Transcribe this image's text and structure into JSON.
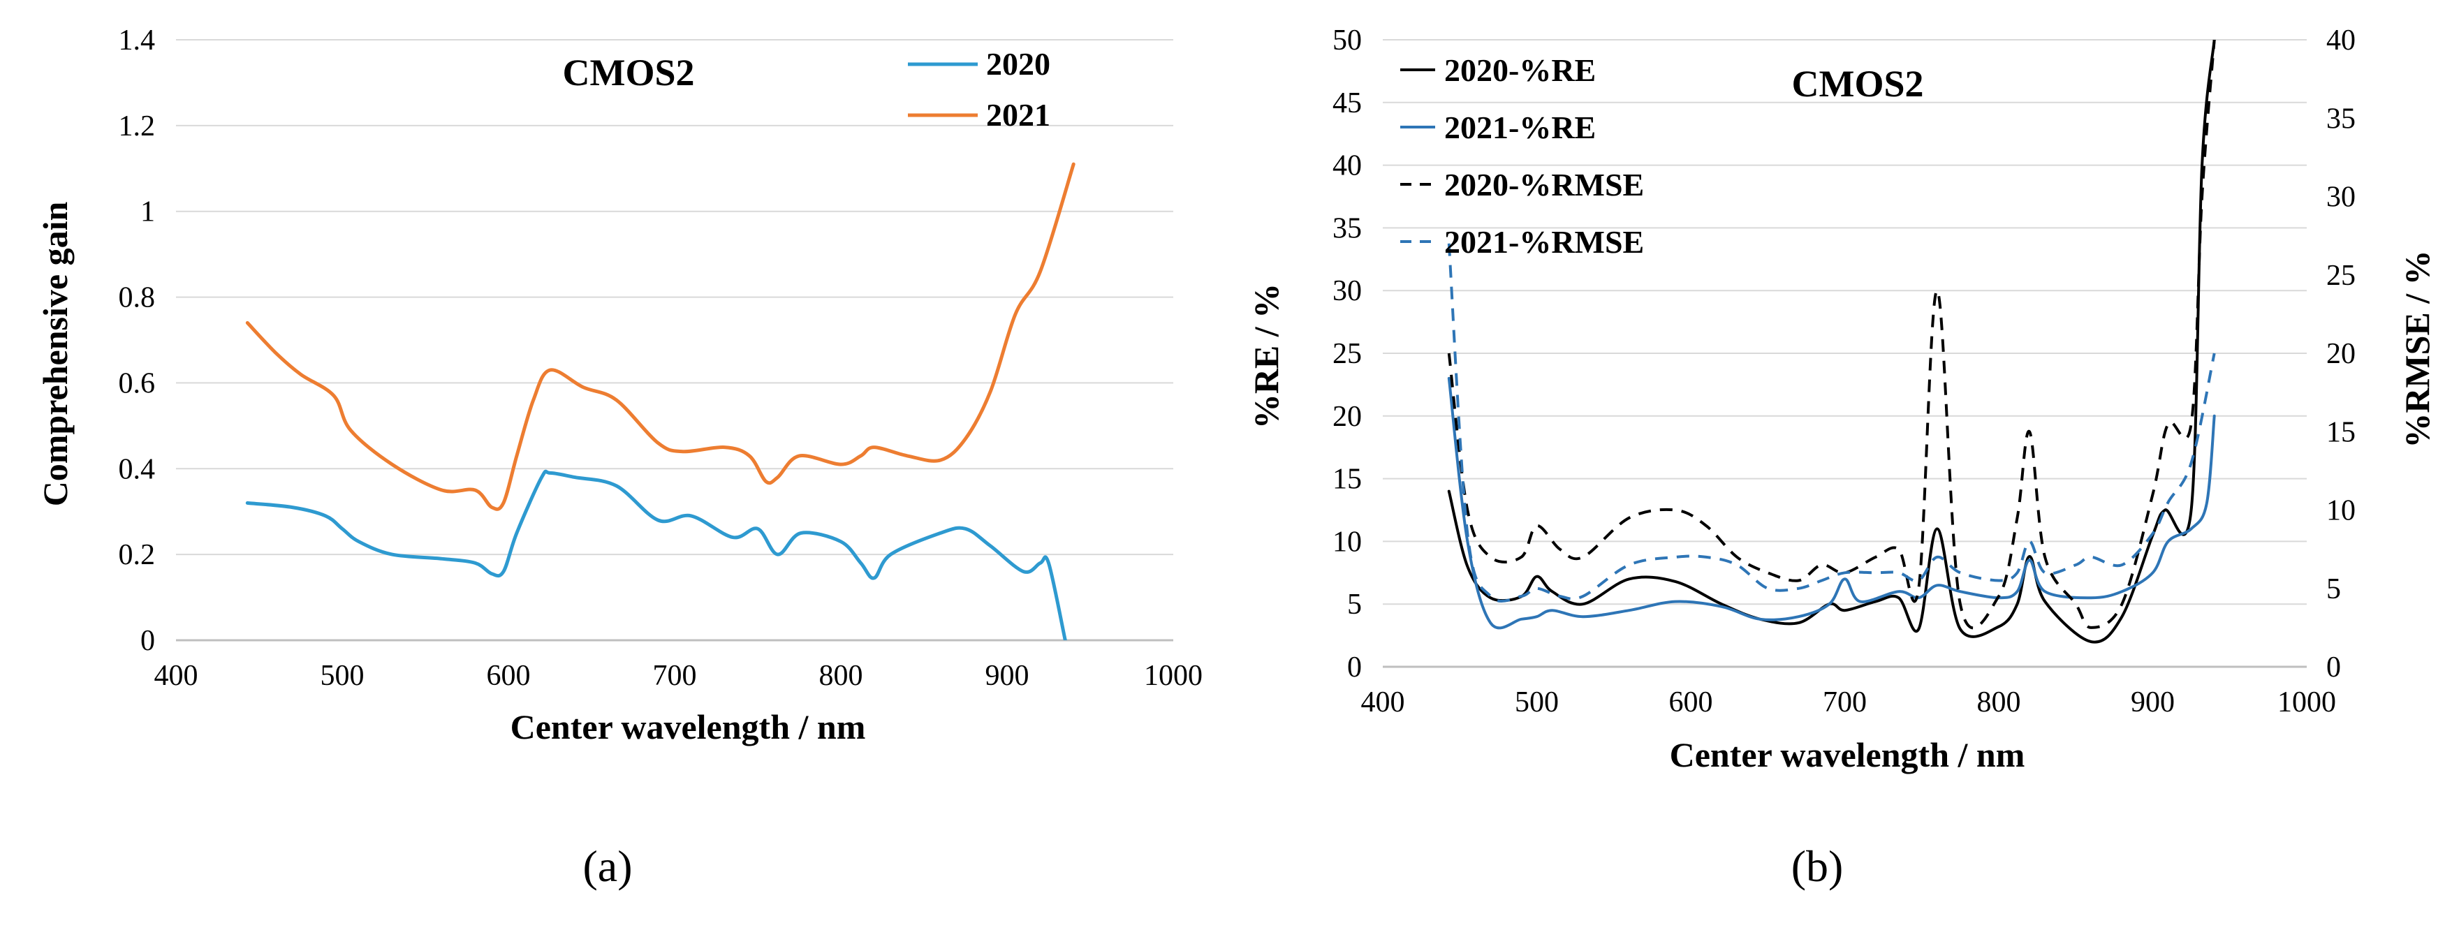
{
  "chart_data": [
    {
      "id": "a",
      "type": "line",
      "panel_label": "(a)",
      "title": "CMOS2",
      "xlabel": "Center wavelength / nm",
      "ylabel": "Comprehensive gain",
      "xlim": [
        400,
        1000
      ],
      "ylim": [
        0,
        1.4
      ],
      "xticks": [
        400,
        500,
        600,
        700,
        800,
        900,
        1000
      ],
      "yticks": [
        0,
        0.2,
        0.4,
        0.6,
        0.8,
        1,
        1.2,
        1.4
      ],
      "xtick_labels": [
        "400",
        "500",
        "600",
        "700",
        "800",
        "900",
        "1000"
      ],
      "ytick_labels": [
        "0",
        "0.2",
        "0.4",
        "0.6",
        "0.8",
        "1",
        "1.2",
        "1.4"
      ],
      "legend_position": "top-right",
      "series": [
        {
          "name": "2020",
          "color": "#2E9AD0",
          "dash": "solid",
          "x": [
            443,
            470,
            490,
            500,
            510,
            530,
            560,
            580,
            590,
            597,
            605,
            620,
            625,
            640,
            665,
            690,
            710,
            735,
            750,
            762,
            776,
            800,
            812,
            820,
            830,
            860,
            875,
            890,
            910,
            920,
            925,
            935
          ],
          "y": [
            0.32,
            0.31,
            0.29,
            0.26,
            0.23,
            0.2,
            0.19,
            0.18,
            0.155,
            0.16,
            0.25,
            0.38,
            0.39,
            0.38,
            0.36,
            0.28,
            0.29,
            0.24,
            0.26,
            0.2,
            0.25,
            0.23,
            0.18,
            0.145,
            0.2,
            0.25,
            0.26,
            0.22,
            0.16,
            0.18,
            0.18,
            0.0
          ]
        },
        {
          "name": "2021",
          "color": "#ED7D31",
          "dash": "solid",
          "x": [
            443,
            460,
            475,
            495,
            505,
            530,
            560,
            580,
            590,
            597,
            605,
            615,
            625,
            645,
            665,
            690,
            705,
            730,
            745,
            755,
            762,
            775,
            800,
            812,
            820,
            840,
            860,
            875,
            890,
            905,
            920,
            940
          ],
          "y": [
            0.74,
            0.67,
            0.62,
            0.57,
            0.49,
            0.41,
            0.35,
            0.35,
            0.31,
            0.32,
            0.43,
            0.56,
            0.63,
            0.59,
            0.56,
            0.46,
            0.44,
            0.45,
            0.43,
            0.37,
            0.38,
            0.43,
            0.41,
            0.43,
            0.45,
            0.43,
            0.42,
            0.47,
            0.58,
            0.76,
            0.86,
            1.11
          ]
        }
      ]
    },
    {
      "id": "b",
      "type": "line",
      "panel_label": "(b)",
      "title": "CMOS2",
      "xlabel": "Center wavelength / nm",
      "ylabel": "%RE / %",
      "y2label": "%RMSE / %",
      "xlim": [
        400,
        1000
      ],
      "ylim": [
        0,
        50
      ],
      "y2lim": [
        0,
        40
      ],
      "xticks": [
        400,
        500,
        600,
        700,
        800,
        900,
        1000
      ],
      "yticks": [
        0,
        5,
        10,
        15,
        20,
        25,
        30,
        35,
        40,
        45,
        50
      ],
      "y2ticks": [
        0,
        5,
        10,
        15,
        20,
        25,
        30,
        35,
        40
      ],
      "xtick_labels": [
        "400",
        "500",
        "600",
        "700",
        "800",
        "900",
        "1000"
      ],
      "ytick_labels": [
        "0",
        "5",
        "10",
        "15",
        "20",
        "25",
        "30",
        "35",
        "40",
        "45",
        "50"
      ],
      "y2tick_labels": [
        "0",
        "5",
        "10",
        "15",
        "20",
        "25",
        "30",
        "35",
        "40"
      ],
      "legend_position": "top-left",
      "series": [
        {
          "name": "2020-%RE",
          "color": "#000000",
          "dash": "solid",
          "axis": "left",
          "x": [
            443,
            455,
            470,
            490,
            500,
            510,
            530,
            560,
            590,
            620,
            645,
            670,
            690,
            700,
            720,
            735,
            748,
            760,
            775,
            800,
            812,
            820,
            830,
            860,
            880,
            900,
            908,
            925,
            932,
            940
          ],
          "y": [
            14,
            8,
            5.5,
            5.6,
            7.2,
            6,
            5,
            7,
            6.8,
            5,
            3.8,
            3.5,
            5,
            4.5,
            5.2,
            5.5,
            3,
            11,
            3,
            3.2,
            5,
            8.8,
            5.2,
            2,
            4,
            10.5,
            12.5,
            12.5,
            40,
            50
          ]
        },
        {
          "name": "2021-%RE",
          "color": "#2E75B6",
          "dash": "solid",
          "axis": "left",
          "x": [
            443,
            455,
            470,
            490,
            500,
            510,
            530,
            560,
            590,
            620,
            645,
            670,
            690,
            700,
            710,
            735,
            748,
            760,
            775,
            800,
            812,
            820,
            830,
            860,
            880,
            900,
            910,
            925,
            935,
            940
          ],
          "y": [
            23,
            10,
            3.5,
            3.8,
            4,
            4.5,
            4,
            4.5,
            5.2,
            4.8,
            3.8,
            4,
            5,
            7,
            5.2,
            6,
            5.5,
            6.5,
            6,
            5.5,
            6,
            8.5,
            6,
            5.5,
            6,
            7.5,
            10,
            11,
            13,
            20
          ]
        },
        {
          "name": "2020-%RMSE",
          "color": "#000000",
          "dash": "dashed",
          "axis": "right",
          "x": [
            443,
            455,
            470,
            490,
            500,
            515,
            530,
            560,
            590,
            610,
            630,
            650,
            670,
            685,
            700,
            720,
            735,
            748,
            760,
            775,
            800,
            812,
            820,
            830,
            850,
            860,
            880,
            900,
            910,
            925,
            932,
            940
          ],
          "y": [
            20,
            10,
            7,
            7,
            9,
            7.5,
            7,
            9.5,
            10,
            9,
            7,
            6,
            5.5,
            6.5,
            6,
            7,
            7.5,
            5,
            24,
            4,
            4.5,
            9.5,
            15,
            7,
            4,
            2.5,
            4,
            11,
            15.5,
            15.5,
            30,
            40
          ]
        },
        {
          "name": "2021-%RMSE",
          "color": "#2E75B6",
          "dash": "dashed",
          "axis": "right",
          "x": [
            443,
            455,
            470,
            490,
            500,
            515,
            530,
            560,
            590,
            610,
            630,
            650,
            670,
            685,
            700,
            720,
            735,
            748,
            760,
            775,
            800,
            812,
            820,
            830,
            850,
            860,
            880,
            900,
            910,
            925,
            940
          ],
          "y": [
            27,
            8.5,
            4.5,
            4.5,
            5,
            4.5,
            4.5,
            6.5,
            7,
            7,
            6.5,
            5,
            5,
            5.5,
            6,
            6,
            6,
            5.5,
            7,
            6,
            5.5,
            6,
            8,
            6,
            6.5,
            7,
            6.5,
            8.5,
            10.5,
            13,
            20
          ]
        }
      ]
    }
  ]
}
